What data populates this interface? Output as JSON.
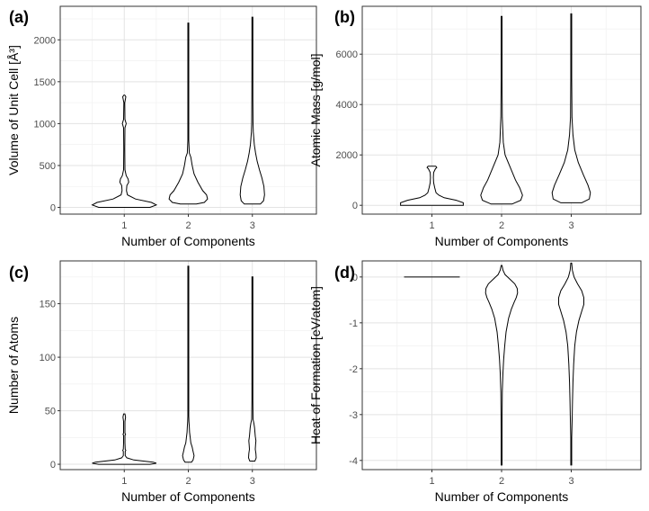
{
  "chart_data": [
    {
      "type": "violin",
      "tag": "(a)",
      "xlabel": "Number of Components",
      "ylabel": "Volume of Unit Cell [Å³]",
      "categories": [
        "1",
        "2",
        "3"
      ],
      "ylim": [
        -80,
        2400
      ],
      "yticks": [
        0,
        500,
        1000,
        1500,
        2000
      ],
      "grid": true,
      "violins": [
        {
          "category": "1",
          "profile": [
            [
              0,
              0.8
            ],
            [
              30,
              1.0
            ],
            [
              60,
              0.85
            ],
            [
              100,
              0.35
            ],
            [
              150,
              0.1
            ],
            [
              200,
              0.07
            ],
            [
              260,
              0.08
            ],
            [
              300,
              0.14
            ],
            [
              340,
              0.12
            ],
            [
              380,
              0.06
            ],
            [
              450,
              0.02
            ],
            [
              700,
              0.015
            ],
            [
              950,
              0.02
            ],
            [
              1000,
              0.06
            ],
            [
              1050,
              0.02
            ],
            [
              1250,
              0.01
            ],
            [
              1320,
              0.05
            ],
            [
              1340,
              0.0
            ]
          ]
        },
        {
          "category": "2",
          "profile": [
            [
              40,
              0.25
            ],
            [
              60,
              0.5
            ],
            [
              100,
              0.6
            ],
            [
              150,
              0.57
            ],
            [
              200,
              0.45
            ],
            [
              300,
              0.3
            ],
            [
              400,
              0.18
            ],
            [
              500,
              0.12
            ],
            [
              600,
              0.08
            ],
            [
              650,
              0.03
            ],
            [
              800,
              0.015
            ],
            [
              1500,
              0.01
            ],
            [
              2200,
              0.0
            ]
          ]
        },
        {
          "category": "3",
          "profile": [
            [
              40,
              0.25
            ],
            [
              80,
              0.35
            ],
            [
              150,
              0.38
            ],
            [
              250,
              0.36
            ],
            [
              350,
              0.3
            ],
            [
              450,
              0.22
            ],
            [
              550,
              0.15
            ],
            [
              650,
              0.1
            ],
            [
              750,
              0.06
            ],
            [
              900,
              0.03
            ],
            [
              1000,
              0.02
            ],
            [
              1300,
              0.015
            ],
            [
              1700,
              0.01
            ],
            [
              2270,
              0.0
            ]
          ]
        }
      ]
    },
    {
      "type": "violin",
      "tag": "(b)",
      "xlabel": "Number of Components",
      "ylabel": "Atomic Mass [g/mol]",
      "categories": [
        "1",
        "2",
        "3"
      ],
      "ylim": [
        -350,
        7900
      ],
      "yticks": [
        0,
        2000,
        4000,
        6000
      ],
      "grid": true,
      "violins": [
        {
          "category": "1",
          "profile": [
            [
              0,
              0.9
            ],
            [
              100,
              0.9
            ],
            [
              200,
              0.7
            ],
            [
              300,
              0.35
            ],
            [
              400,
              0.2
            ],
            [
              500,
              0.12
            ],
            [
              700,
              0.08
            ],
            [
              900,
              0.05
            ],
            [
              1100,
              0.04
            ],
            [
              1300,
              0.05
            ],
            [
              1450,
              0.1
            ],
            [
              1500,
              0.14
            ],
            [
              1550,
              0.11
            ]
          ]
        },
        {
          "category": "2",
          "profile": [
            [
              50,
              0.3
            ],
            [
              200,
              0.55
            ],
            [
              400,
              0.6
            ],
            [
              700,
              0.52
            ],
            [
              1000,
              0.4
            ],
            [
              1500,
              0.25
            ],
            [
              2000,
              0.1
            ],
            [
              2500,
              0.05
            ],
            [
              3500,
              0.02
            ],
            [
              5000,
              0.01
            ],
            [
              7500,
              0.0
            ]
          ]
        },
        {
          "category": "3",
          "profile": [
            [
              100,
              0.3
            ],
            [
              250,
              0.52
            ],
            [
              500,
              0.55
            ],
            [
              800,
              0.48
            ],
            [
              1200,
              0.35
            ],
            [
              1700,
              0.2
            ],
            [
              2200,
              0.1
            ],
            [
              2800,
              0.05
            ],
            [
              3500,
              0.02
            ],
            [
              5000,
              0.01
            ],
            [
              7600,
              0.0
            ]
          ]
        }
      ]
    },
    {
      "type": "violin",
      "tag": "(c)",
      "xlabel": "Number of Components",
      "ylabel": "Number of Atoms",
      "categories": [
        "1",
        "2",
        "3"
      ],
      "ylim": [
        -5,
        190
      ],
      "yticks": [
        0,
        50,
        100,
        150
      ],
      "grid": true,
      "violins": [
        {
          "category": "1",
          "profile": [
            [
              0,
              0.8
            ],
            [
              1,
              1.0
            ],
            [
              2,
              0.9
            ],
            [
              4,
              0.3
            ],
            [
              6,
              0.08
            ],
            [
              8,
              0.03
            ],
            [
              10,
              0.03
            ],
            [
              12,
              0.03
            ],
            [
              13,
              0.05
            ],
            [
              14,
              0.03
            ],
            [
              20,
              0.02
            ],
            [
              27,
              0.02
            ],
            [
              28,
              0.04
            ],
            [
              29,
              0.02
            ],
            [
              40,
              0.02
            ],
            [
              44,
              0.04
            ],
            [
              47,
              0.02
            ]
          ]
        },
        {
          "category": "2",
          "profile": [
            [
              2,
              0.1
            ],
            [
              4,
              0.15
            ],
            [
              8,
              0.18
            ],
            [
              12,
              0.15
            ],
            [
              16,
              0.12
            ],
            [
              20,
              0.08
            ],
            [
              25,
              0.06
            ],
            [
              30,
              0.04
            ],
            [
              35,
              0.03
            ],
            [
              40,
              0.02
            ],
            [
              45,
              0.01
            ],
            [
              60,
              0.005
            ],
            [
              185,
              0.0
            ]
          ]
        },
        {
          "category": "3",
          "profile": [
            [
              3,
              0.08
            ],
            [
              6,
              0.12
            ],
            [
              10,
              0.11
            ],
            [
              14,
              0.09
            ],
            [
              18,
              0.1
            ],
            [
              22,
              0.11
            ],
            [
              26,
              0.09
            ],
            [
              30,
              0.08
            ],
            [
              34,
              0.07
            ],
            [
              38,
              0.05
            ],
            [
              42,
              0.02
            ],
            [
              60,
              0.01
            ],
            [
              175,
              0.0
            ]
          ]
        }
      ]
    },
    {
      "type": "violin",
      "tag": "(d)",
      "xlabel": "Number of Components",
      "ylabel": "Heat of Formation [eV/atom]",
      "categories": [
        "1",
        "2",
        "3"
      ],
      "ylim": [
        -4.2,
        0.35
      ],
      "yticks": [
        0,
        -1,
        -2,
        -3,
        -4
      ],
      "grid": true,
      "violins": [
        {
          "category": "1",
          "profile": [
            [
              0,
              0.8
            ]
          ]
        },
        {
          "category": "2",
          "profile": [
            [
              0.25,
              0.01
            ],
            [
              0.15,
              0.04
            ],
            [
              0.05,
              0.1
            ],
            [
              -0.05,
              0.24
            ],
            [
              -0.15,
              0.38
            ],
            [
              -0.25,
              0.45
            ],
            [
              -0.35,
              0.46
            ],
            [
              -0.45,
              0.42
            ],
            [
              -0.55,
              0.36
            ],
            [
              -0.7,
              0.28
            ],
            [
              -0.9,
              0.2
            ],
            [
              -1.2,
              0.13
            ],
            [
              -1.5,
              0.09
            ],
            [
              -1.8,
              0.06
            ],
            [
              -2.1,
              0.04
            ],
            [
              -2.5,
              0.02
            ],
            [
              -3.0,
              0.015
            ],
            [
              -3.5,
              0.01
            ],
            [
              -4.1,
              0.0
            ]
          ]
        },
        {
          "category": "3",
          "profile": [
            [
              0.3,
              0.01
            ],
            [
              0.15,
              0.03
            ],
            [
              0.0,
              0.08
            ],
            [
              -0.15,
              0.18
            ],
            [
              -0.3,
              0.3
            ],
            [
              -0.45,
              0.36
            ],
            [
              -0.6,
              0.36
            ],
            [
              -0.75,
              0.3
            ],
            [
              -0.95,
              0.22
            ],
            [
              -1.2,
              0.15
            ],
            [
              -1.5,
              0.1
            ],
            [
              -1.9,
              0.07
            ],
            [
              -2.3,
              0.05
            ],
            [
              -2.7,
              0.035
            ],
            [
              -3.1,
              0.025
            ],
            [
              -3.5,
              0.01
            ],
            [
              -4.1,
              0.0
            ]
          ]
        }
      ]
    }
  ]
}
